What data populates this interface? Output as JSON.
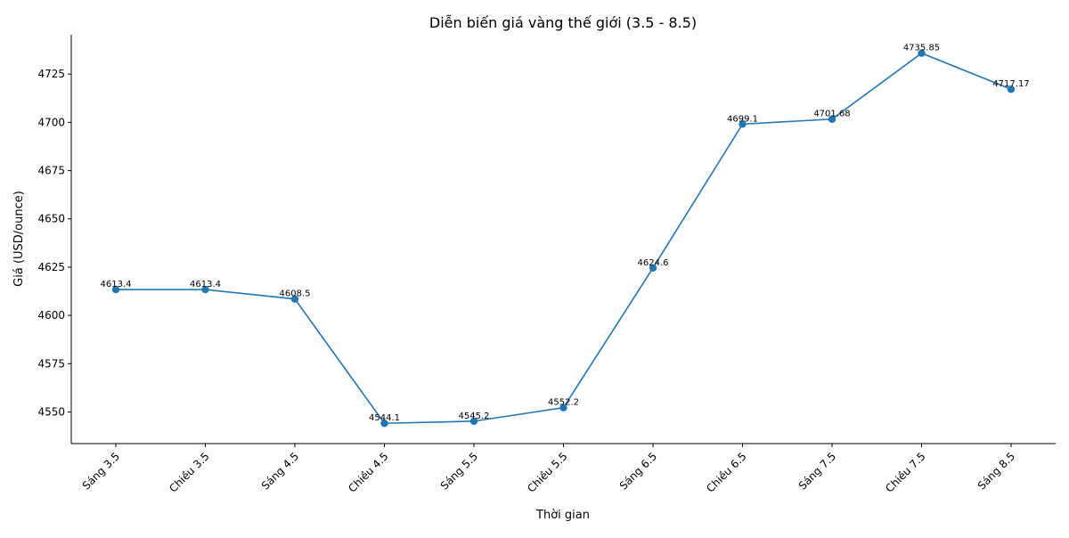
{
  "chart_data": {
    "type": "line",
    "title": "Diễn biến giá vàng thế giới (3.5 - 8.5)",
    "xlabel": "Thời gian",
    "ylabel": "Giá (USD/ounce)",
    "categories": [
      "Sáng 3.5",
      "Chiều 3.5",
      "Sáng 4.5",
      "Chiều 4.5",
      "Sáng 5.5",
      "Chiều 5.5",
      "Sáng 6.5",
      "Chiều 6.5",
      "Sáng 7.5",
      "Chiều 7.5",
      "Sáng 8.5"
    ],
    "series": [
      {
        "values": [
          4613.4,
          4613.4,
          4608.5,
          4544.1,
          4545.2,
          4552.2,
          4624.6,
          4699.1,
          4701.68,
          4735.85,
          4717.17
        ],
        "labels": [
          "4613.4",
          "4613.4",
          "4608.5",
          "4544.1",
          "4545.2",
          "4552.2",
          "4624.6",
          "4699.1",
          "4701.68",
          "4735.85",
          "4717.17"
        ],
        "color": "#1f77b4"
      }
    ],
    "ylim": [
      4533.6,
      4745.4
    ],
    "yticks": [
      4550,
      4575,
      4600,
      4625,
      4650,
      4675,
      4700,
      4725
    ],
    "grid": false,
    "legend": "none"
  }
}
